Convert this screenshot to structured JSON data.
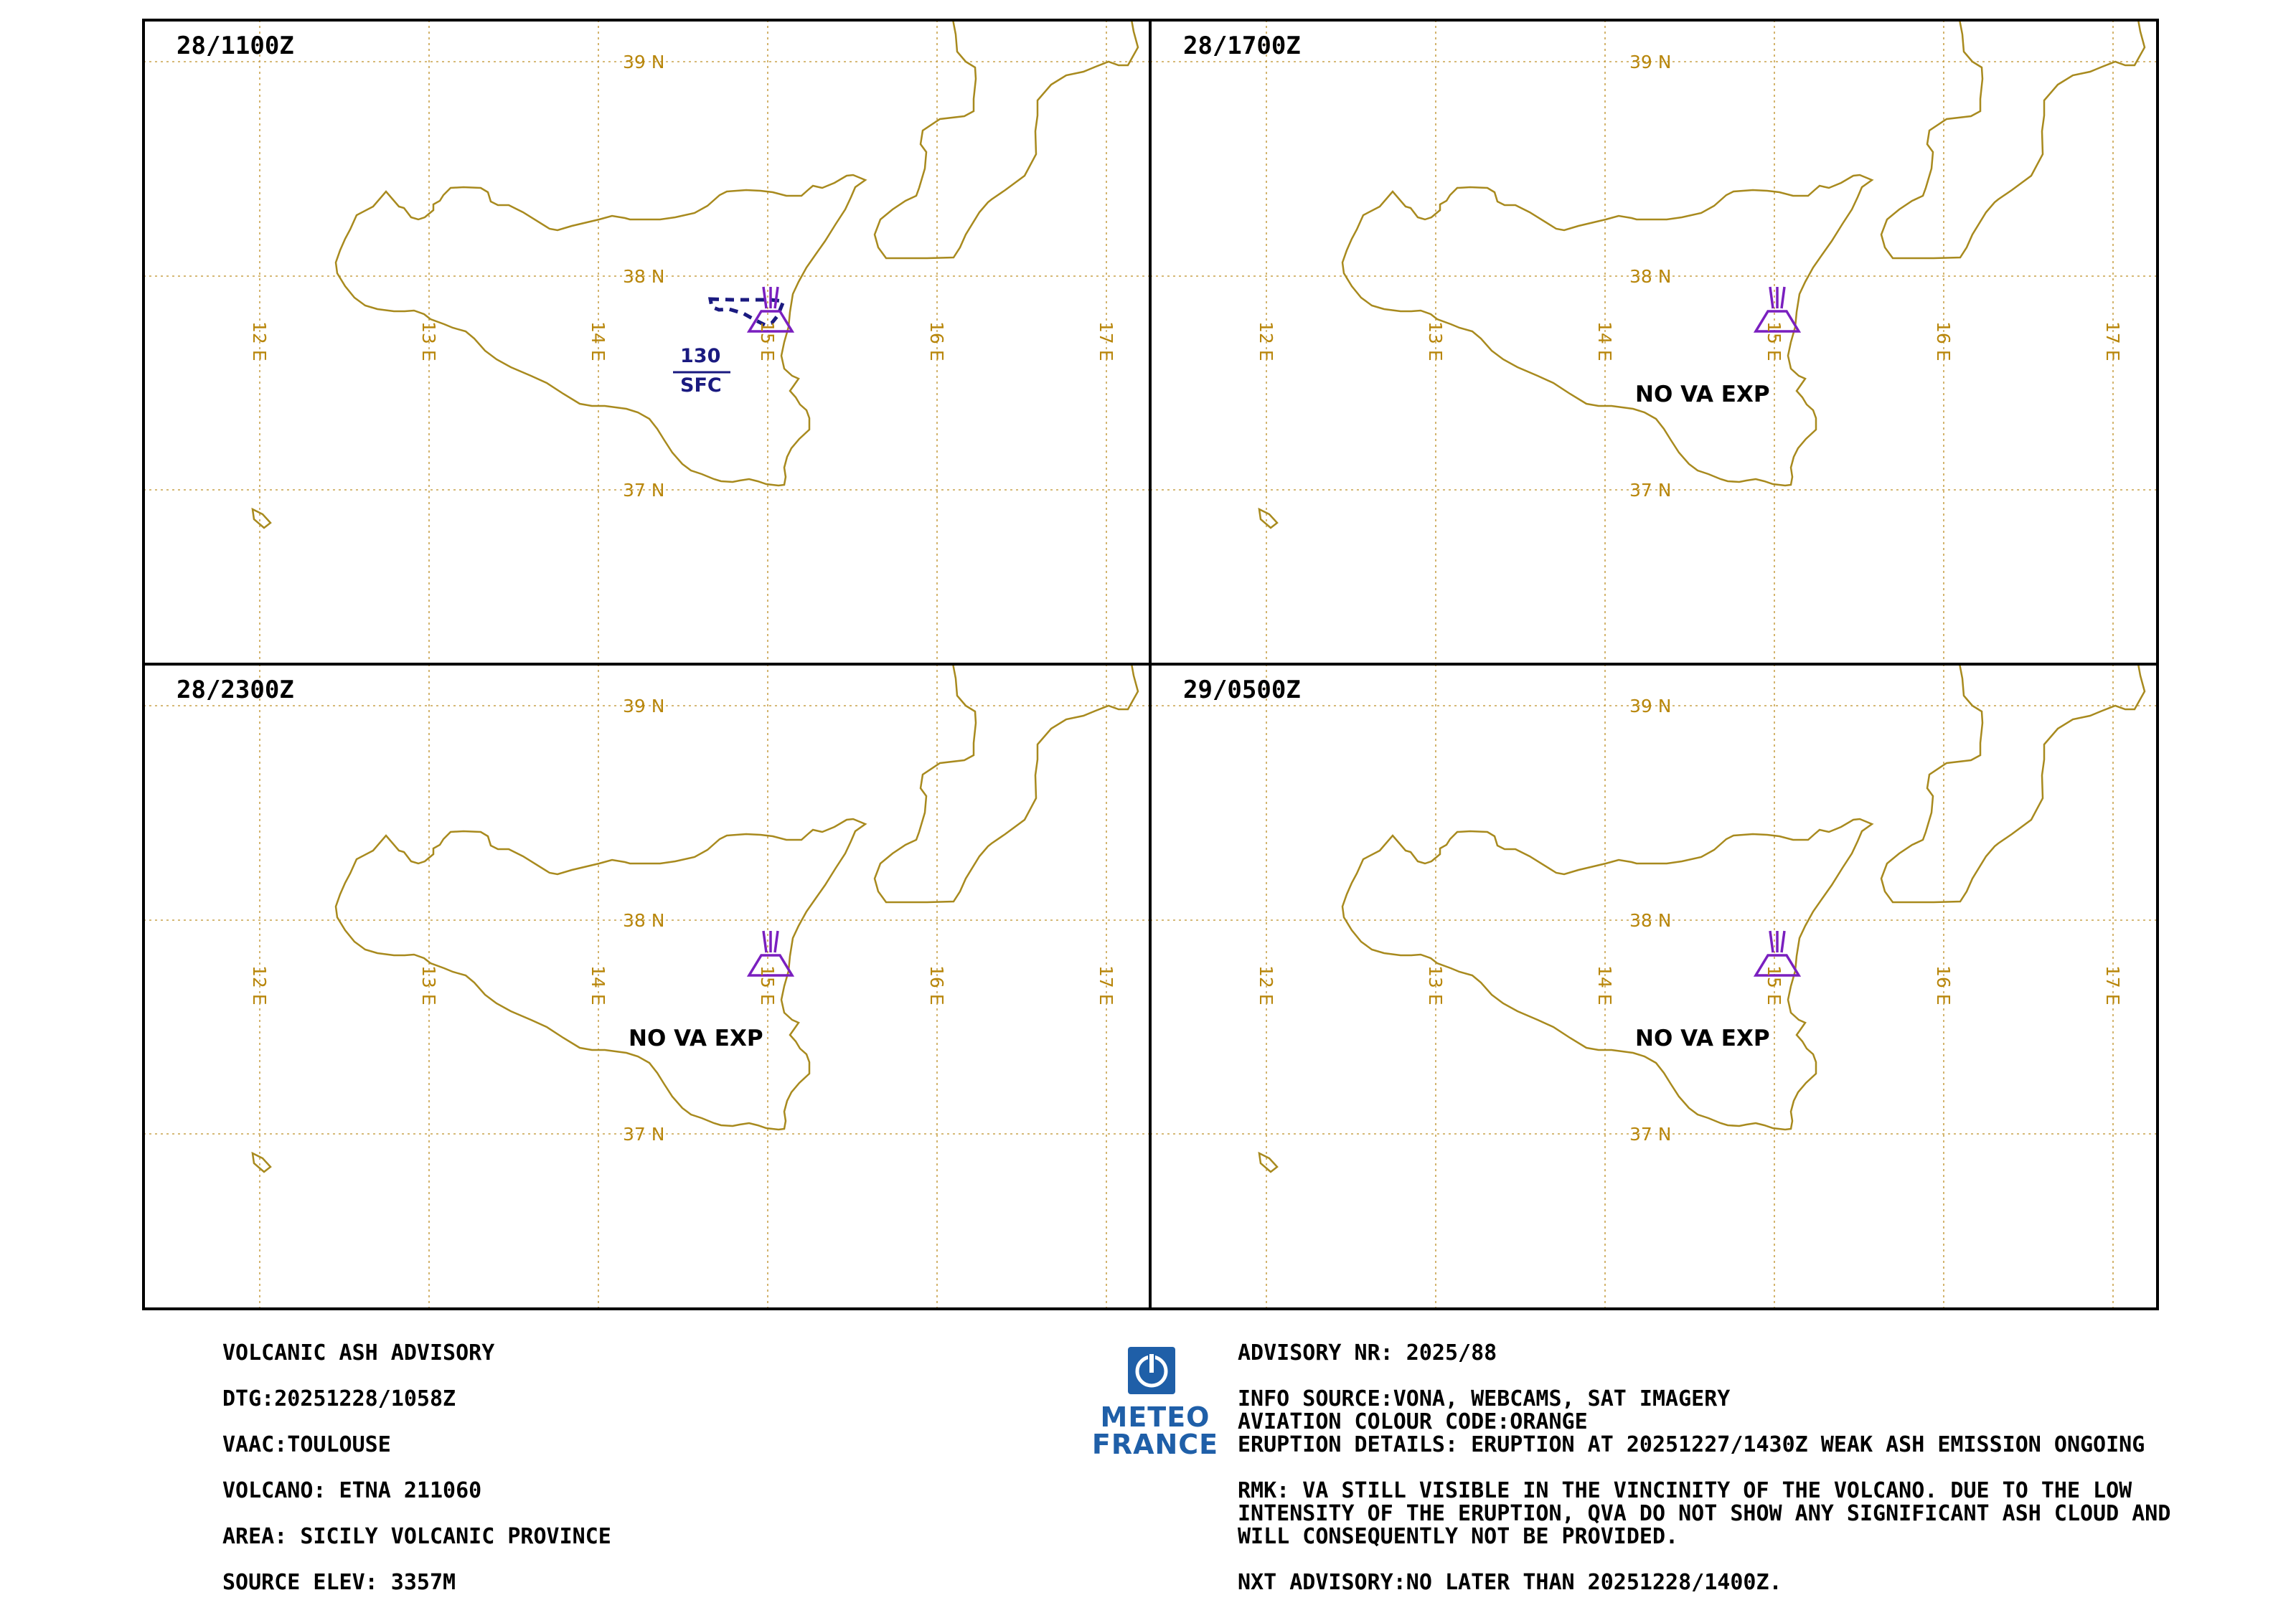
{
  "panels": [
    {
      "time": "28/1100Z",
      "status": ""
    },
    {
      "time": "28/1700Z",
      "status": "NO VA EXP"
    },
    {
      "time": "28/2300Z",
      "status": "NO VA EXP"
    },
    {
      "time": "29/0500Z",
      "status": "NO VA EXP"
    }
  ],
  "ash_cloud": {
    "top": "130",
    "base": "SFC"
  },
  "grid_labels": {
    "lat": [
      "39 N",
      "38 N",
      "37 N"
    ],
    "lon": [
      "12 E",
      "13 E",
      "14 E",
      "15 E",
      "16 E",
      "17 E"
    ]
  },
  "colors": {
    "coastline": "#a88a1e",
    "grid": "#c8a24a",
    "ash_cloud": "#1a1a80",
    "volcano_symbol": "#7a1fbf",
    "logo": "#1f5fa8"
  },
  "icons": {
    "volcano": "volcano-icon",
    "logo": "meteo-france-logo"
  },
  "advisory_left": {
    "title": "VOLCANIC ASH ADVISORY",
    "dtg": "DTG:20251228/1058Z",
    "vaac": "VAAC:TOULOUSE",
    "volcano": "VOLCANO: ETNA 211060",
    "area": "AREA: SICILY VOLCANIC PROVINCE",
    "source_elev": "SOURCE ELEV: 3357M"
  },
  "advisory_right": {
    "advisory_nr": "ADVISORY NR: 2025/88",
    "info_source": "INFO SOURCE:VONA, WEBCAMS, SAT IMAGERY",
    "colour_code": "AVIATION COLOUR CODE:ORANGE",
    "eruption_details": "ERUPTION DETAILS: ERUPTION AT 20251227/1430Z WEAK ASH EMISSION ONGOING",
    "rmk_line1": "RMK: VA STILL VISIBLE IN THE VINCINITY OF THE VOLCANO. DUE TO THE LOW",
    "rmk_line2": "INTENSITY OF THE ERUPTION, QVA DO NOT SHOW ANY SIGNIFICANT ASH CLOUD AND",
    "rmk_line3": "WILL CONSEQUENTLY NOT BE PROVIDED.",
    "next_advisory": "NXT ADVISORY:NO LATER THAN 20251228/1400Z."
  },
  "logo": {
    "line1": "METEO",
    "line2": "FRANCE"
  }
}
